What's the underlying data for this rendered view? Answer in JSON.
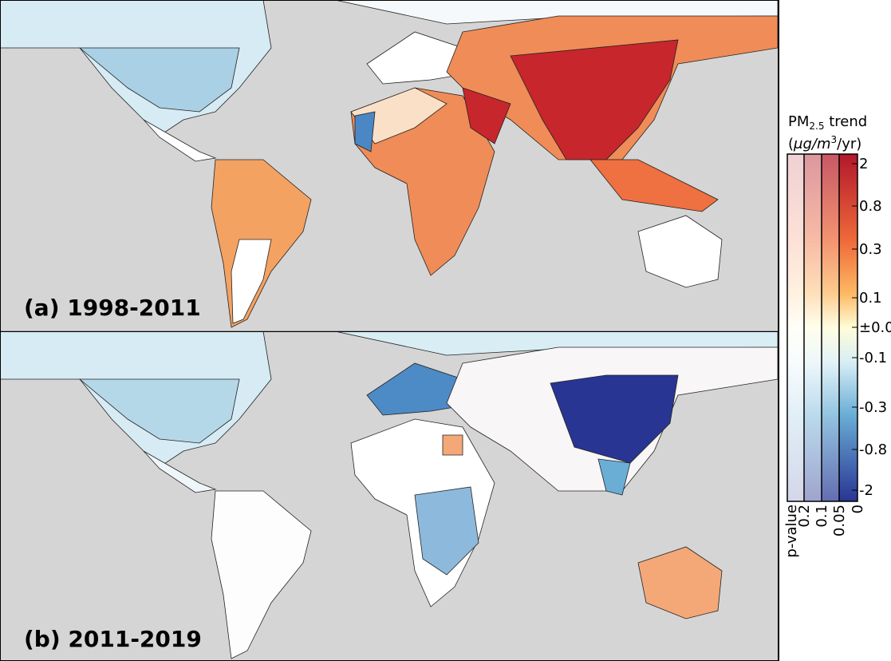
{
  "panels": [
    {
      "label": "(a) 1998-2011"
    },
    {
      "label": "(b) 2011-2019"
    }
  ],
  "colorbar": {
    "title": "PM",
    "title_sub": "2.5",
    "title_rest": " trend",
    "unit_open": "(",
    "unit_mu": "μg/m",
    "unit_sup": "3",
    "unit_rest": "/yr)",
    "ticks": [
      "2",
      "0.8",
      "0.3",
      "0.1",
      "±0.0",
      "-0.1",
      "-0.3",
      "-0.8",
      "-2"
    ],
    "pvalue_title": "p-value",
    "pvalue_ticks": [
      "0.2",
      "0.1",
      "0.05",
      "0"
    ]
  }
}
